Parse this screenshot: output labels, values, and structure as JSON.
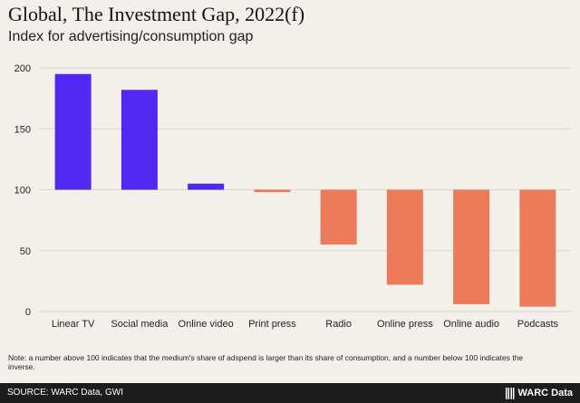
{
  "header": {
    "title": "Global, The Investment Gap, 2022(f)",
    "subtitle": "Index for advertising/consumption gap"
  },
  "chart_data": {
    "type": "bar",
    "categories": [
      "Linear TV",
      "Social media",
      "Online video",
      "Print press",
      "Radio",
      "Online press",
      "Online audio",
      "Podcasts"
    ],
    "values": [
      195,
      182,
      105,
      98,
      55,
      22,
      6,
      4
    ],
    "baseline": 100,
    "ylim": [
      0,
      200
    ],
    "yticks": [
      0,
      50,
      100,
      150,
      200
    ],
    "grid": true,
    "colors": {
      "above": "#5128f2",
      "below": "#ed7b5a",
      "grid": "#d9d5cf"
    }
  },
  "note": "Note: a number above 100 indicates that the medium's share of adspend is larger than its share of consumption, and a number below 100 indicates the inverse.",
  "footer": {
    "source": "SOURCE: WARC Data, GWI",
    "brand": "WARC Data",
    "brand_icon": "warc-logo-icon"
  }
}
